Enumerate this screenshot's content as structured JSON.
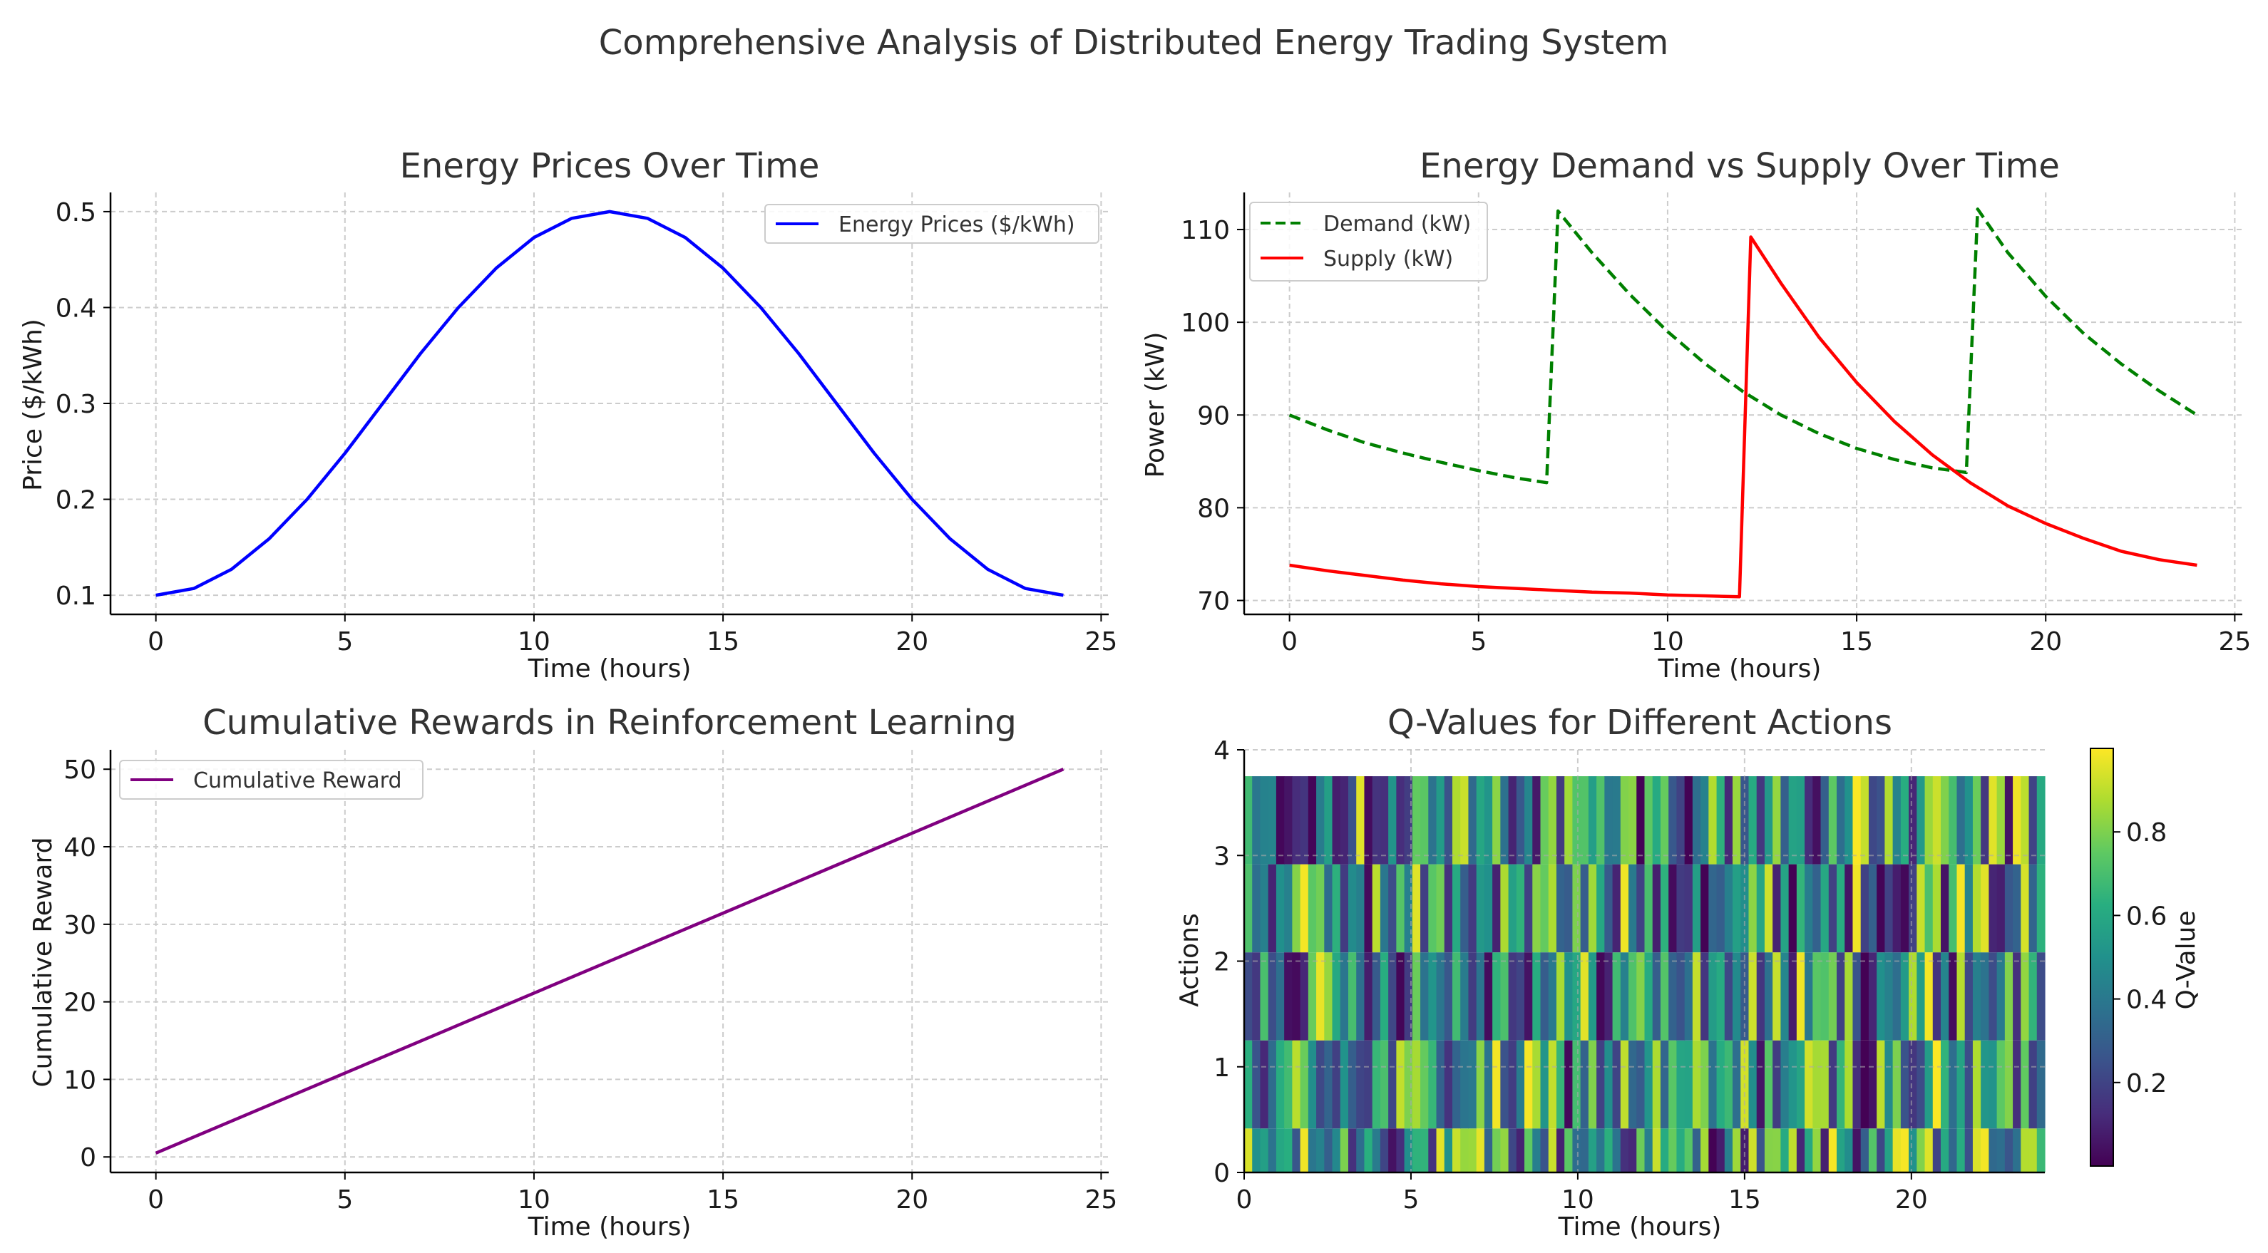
{
  "figure_title": "Comprehensive Analysis of Distributed Energy Trading System",
  "colors": {
    "price": "#0000ff",
    "demand": "#008000",
    "supply": "#ff0000",
    "reward": "#800080",
    "grid": "#cccccc",
    "text": "#333333"
  },
  "chart_data": [
    {
      "type": "line",
      "title": "Energy Prices Over Time",
      "xlabel": "Time (hours)",
      "ylabel": "Price ($/kWh)",
      "xlim": [
        -1.2,
        25.2
      ],
      "ylim": [
        0.08,
        0.52
      ],
      "xticks": [
        0,
        5,
        10,
        15,
        20,
        25
      ],
      "yticks": [
        0.1,
        0.2,
        0.3,
        0.4,
        0.5
      ],
      "ytick_labels": [
        "0.1",
        "0.2",
        "0.3",
        "0.4",
        "0.5"
      ],
      "legend_position": "top-right",
      "grid": true,
      "series": [
        {
          "name": "Energy Prices ($/kWh)",
          "style": "solid",
          "x": [
            0,
            1,
            2,
            3,
            4,
            5,
            6,
            7,
            8,
            9,
            10,
            11,
            12,
            13,
            14,
            15,
            16,
            17,
            18,
            19,
            20,
            21,
            22,
            23,
            24
          ],
          "values": [
            0.1,
            0.107,
            0.127,
            0.159,
            0.2,
            0.248,
            0.3,
            0.352,
            0.4,
            0.441,
            0.473,
            0.493,
            0.5,
            0.493,
            0.473,
            0.441,
            0.4,
            0.352,
            0.3,
            0.248,
            0.2,
            0.159,
            0.127,
            0.107,
            0.1
          ]
        }
      ]
    },
    {
      "type": "line",
      "title": "Energy Demand vs Supply Over Time",
      "xlabel": "Time (hours)",
      "ylabel": "Power (kW)",
      "xlim": [
        -1.2,
        25.2
      ],
      "ylim": [
        68.5,
        114
      ],
      "xticks": [
        0,
        5,
        10,
        15,
        20,
        25
      ],
      "yticks": [
        70,
        80,
        90,
        100,
        110
      ],
      "ytick_labels": [
        "70",
        "80",
        "90",
        "100",
        "110"
      ],
      "legend_position": "top-left",
      "grid": true,
      "series": [
        {
          "name": "Demand (kW)",
          "style": "dashed",
          "x": [
            0,
            1,
            2,
            3,
            4,
            5,
            6,
            6.8,
            7.1,
            8,
            9,
            10,
            11,
            12,
            13,
            14,
            15,
            16,
            17,
            17.9,
            18.2,
            19,
            20,
            21,
            22,
            23,
            24
          ],
          "values": [
            90.0,
            88.4,
            87.0,
            85.9,
            84.9,
            84.0,
            83.2,
            82.7,
            112.0,
            107.5,
            103.0,
            99.0,
            95.5,
            92.5,
            90.0,
            88.0,
            86.4,
            85.2,
            84.3,
            83.8,
            112.2,
            107.5,
            102.8,
            98.8,
            95.5,
            92.6,
            90.0
          ]
        },
        {
          "name": "Supply (kW)",
          "style": "solid",
          "x": [
            0,
            1,
            2,
            3,
            4,
            5,
            6,
            7,
            8,
            9,
            10,
            11,
            11.9,
            12.2,
            13,
            14,
            15,
            16,
            17,
            18,
            19,
            20,
            21,
            22,
            23,
            24
          ],
          "values": [
            73.8,
            73.2,
            72.7,
            72.2,
            71.8,
            71.5,
            71.3,
            71.1,
            70.9,
            70.8,
            70.6,
            70.5,
            70.4,
            109.2,
            104.2,
            98.4,
            93.5,
            89.3,
            85.7,
            82.7,
            80.2,
            78.3,
            76.7,
            75.3,
            74.4,
            73.8
          ]
        }
      ]
    },
    {
      "type": "line",
      "title": "Cumulative Rewards in Reinforcement Learning",
      "xlabel": "Time (hours)",
      "ylabel": "Cumulative Reward",
      "xlim": [
        -1.2,
        25.2
      ],
      "ylim": [
        -2,
        52.5
      ],
      "xticks": [
        0,
        5,
        10,
        15,
        20,
        25
      ],
      "yticks": [
        0,
        10,
        20,
        30,
        40,
        50
      ],
      "ytick_labels": [
        "0",
        "10",
        "20",
        "30",
        "40",
        "50"
      ],
      "legend_position": "top-left",
      "grid": true,
      "series": [
        {
          "name": "Cumulative Reward",
          "style": "solid",
          "x": [
            0,
            24
          ],
          "values": [
            0.5,
            50.0
          ]
        }
      ]
    },
    {
      "type": "heatmap",
      "title": "Q-Values for Different Actions",
      "xlabel": "Time (hours)",
      "ylabel": "Actions",
      "colorbar_label": "Q-Value",
      "x_range": [
        0,
        24
      ],
      "columns": 100,
      "rows": 5,
      "xticks": [
        0,
        5,
        10,
        15,
        20
      ],
      "yticks": [
        0,
        1,
        2,
        3,
        4
      ],
      "colorbar_ticks": [
        0.2,
        0.4,
        0.6,
        0.8
      ],
      "colorbar_range": [
        0.0,
        1.0
      ],
      "grid": true
    }
  ]
}
